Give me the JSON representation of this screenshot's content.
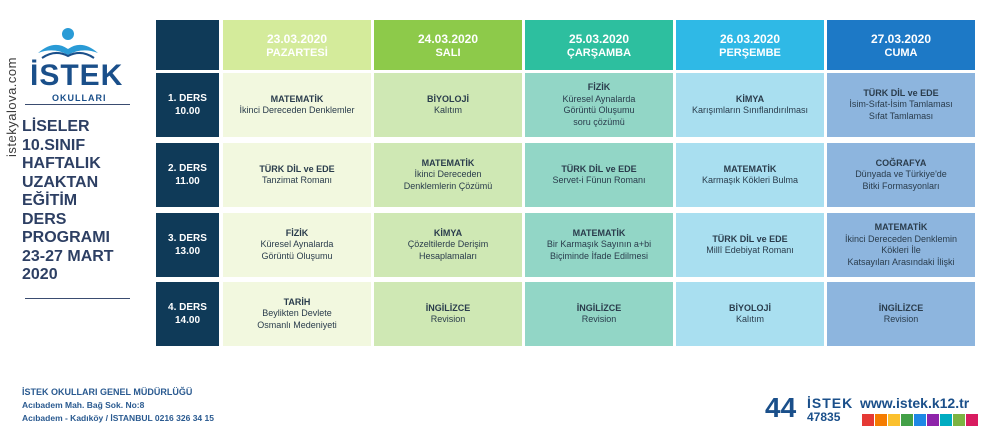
{
  "watermark": "istekyalova.com",
  "logo": {
    "brand": "İSTEK",
    "sub": "OKULLARI"
  },
  "title_lines": [
    "LİSELER",
    "10.SINIF",
    "HAFTALIK",
    "UZAKTAN",
    "EĞİTİM",
    "DERS",
    "PROGRAMI",
    "23-27 MART",
    "2020"
  ],
  "colors": {
    "corner": "#0f3a58",
    "days": [
      "#d4eb9b",
      "#8dca4a",
      "#2dbf9f",
      "#2fb9e6",
      "#1d79c6"
    ],
    "cells": [
      "#f2f8df",
      "#cfe8b4",
      "#92d6c6",
      "#a9dff0",
      "#8db5de"
    ]
  },
  "days": [
    {
      "date": "23.03.2020",
      "name": "PAZARTESİ"
    },
    {
      "date": "24.03.2020",
      "name": "SALI"
    },
    {
      "date": "25.03.2020",
      "name": "ÇARŞAMBA"
    },
    {
      "date": "26.03.2020",
      "name": "PERŞEMBE"
    },
    {
      "date": "27.03.2020",
      "name": "CUMA"
    }
  ],
  "lessons": [
    {
      "label": "1. DERS",
      "time": "10.00",
      "cells": [
        {
          "subject": "MATEMATİK",
          "lines": [
            "İkinci Dereceden Denklemler"
          ]
        },
        {
          "subject": "BİYOLOJİ",
          "lines": [
            "Kalıtım"
          ]
        },
        {
          "subject": "FİZİK",
          "lines": [
            "Küresel Aynalarda",
            "Görüntü Oluşumu",
            "soru çözümü"
          ]
        },
        {
          "subject": "KİMYA",
          "lines": [
            "Karışımların Sınıflandırılması"
          ]
        },
        {
          "subject": "TÜRK DİL ve EDE",
          "lines": [
            "İsim-Sıfat-İsim Tamlaması",
            "Sıfat Tamlaması"
          ]
        }
      ]
    },
    {
      "label": "2. DERS",
      "time": "11.00",
      "cells": [
        {
          "subject": "TÜRK DİL ve EDE",
          "lines": [
            "Tanzimat Romanı"
          ]
        },
        {
          "subject": "MATEMATİK",
          "lines": [
            "İkinci Dereceden",
            "Denklemlerin Çözümü"
          ]
        },
        {
          "subject": "TÜRK DİL ve EDE",
          "lines": [
            "Servet-i Fünun Romanı"
          ]
        },
        {
          "subject": "MATEMATİK",
          "lines": [
            "Karmaşık Kökleri Bulma"
          ]
        },
        {
          "subject": "COĞRAFYA",
          "lines": [
            "Dünyada ve Türkiye'de",
            "Bitki Formasyonları"
          ]
        }
      ]
    },
    {
      "label": "3. DERS",
      "time": "13.00",
      "cells": [
        {
          "subject": "FİZİK",
          "lines": [
            "Küresel Aynalarda",
            "Görüntü Oluşumu"
          ]
        },
        {
          "subject": "KİMYA",
          "lines": [
            "Çözeltilerde Derişim",
            "Hesaplamaları"
          ]
        },
        {
          "subject": "MATEMATİK",
          "lines": [
            "Bir Karmaşık Sayının a+bi",
            "Biçiminde İfade Edilmesi"
          ]
        },
        {
          "subject": "TÜRK DİL ve EDE",
          "lines": [
            "Millî Edebiyat Romanı"
          ]
        },
        {
          "subject": "MATEMATİK",
          "lines": [
            "İkinci Dereceden Denklemin",
            "Kökleri İle",
            "Katsayıları Arasındaki İlişki"
          ]
        }
      ]
    },
    {
      "label": "4. DERS",
      "time": "14.00",
      "cells": [
        {
          "subject": "TARİH",
          "lines": [
            "Beylikten Devlete",
            "Osmanlı Medeniyeti"
          ]
        },
        {
          "subject": "İNGİLİZCE",
          "lines": [
            "Revision"
          ]
        },
        {
          "subject": "İNGİLİZCE",
          "lines": [
            "Revision"
          ]
        },
        {
          "subject": "BİYOLOJİ",
          "lines": [
            "Kalıtım"
          ]
        },
        {
          "subject": "İNGİLİZCE",
          "lines": [
            "Revision"
          ]
        }
      ]
    }
  ],
  "footer": {
    "line1": "İSTEK OKULLARI GENEL MÜDÜRLÜĞÜ",
    "line2": "Acıbadem Mah. Bağ Sok. No:8",
    "line3": "Acıbadem - Kadıköy / İSTANBUL 0216 326 34 15"
  },
  "brand": {
    "big": "44",
    "name": "İSTEK",
    "number": "47835",
    "url": "www.istek.k12.tr"
  },
  "stripe_colors": [
    "#e53935",
    "#f57c00",
    "#fbc02d",
    "#43a047",
    "#1e88e5",
    "#8e24aa",
    "#00acc1",
    "#7cb342",
    "#d81b60"
  ]
}
